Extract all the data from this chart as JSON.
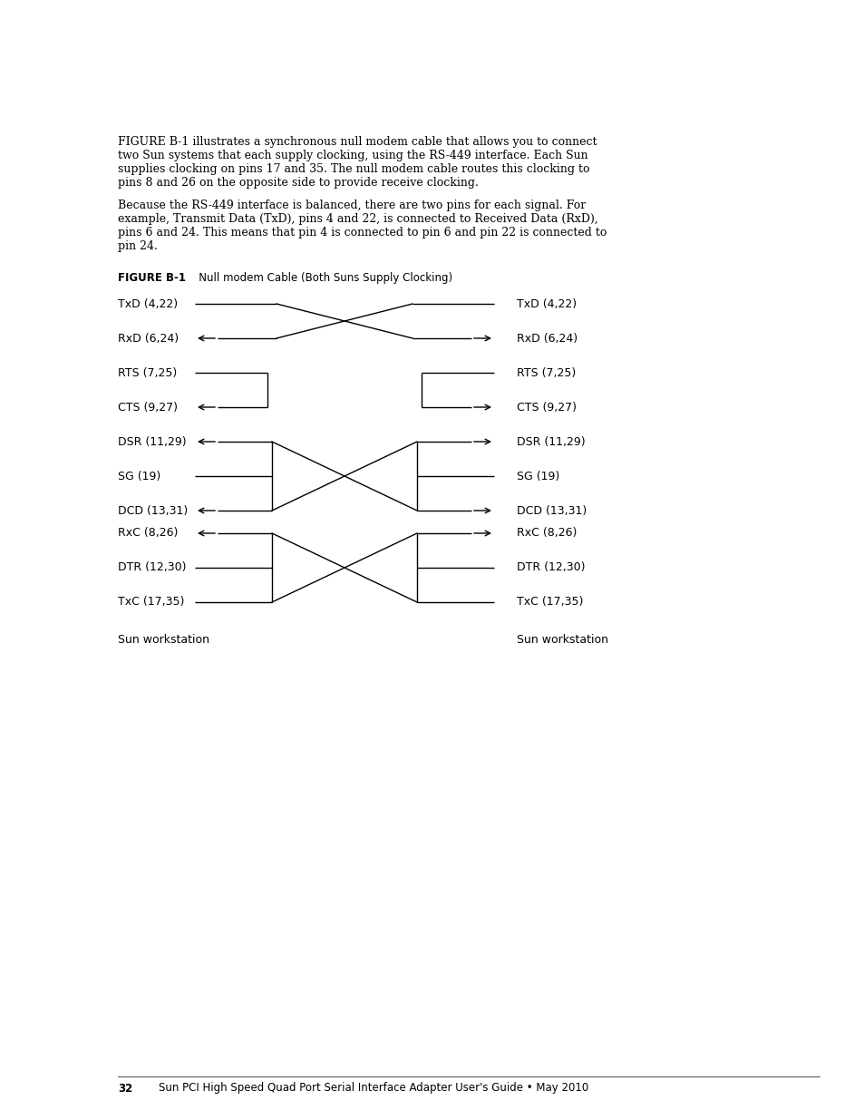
{
  "bg_color": "#ffffff",
  "page_width": 9.54,
  "page_height": 12.35,
  "intro_text": "FIGURE B-1 illustrates a synchronous null modem cable that allows you to connect\ntwo Sun systems that each supply clocking, using the RS-449 interface. Each Sun\nsupplies clocking on pins 17 and 35. The null modem cable routes this clocking to\npins 8 and 26 on the opposite side to provide receive clocking.",
  "para2_text": "Because the RS-449 interface is balanced, there are two pins for each signal. For\nexample, Transmit Data (TxD), pins 4 and 22, is connected to Received Data (RxD),\npins 6 and 24. This means that pin 4 is connected to pin 6 and pin 22 is connected to\npin 24.",
  "figure_label": "FIGURE B-1",
  "figure_title": "   Null modem Cable (Both Suns Supply Clocking)",
  "figure_label_color": "#000000",
  "link_color": "#4169e1",
  "left_labels": [
    "TxD (4,22)",
    "RxD (6,24)",
    "RTS (7,25)",
    "CTS (9,27)",
    "DSR (11,29)",
    "SG (19)",
    "DCD (13,31)",
    "RxC (8,26)",
    "DTR (12,30)",
    "TxC (17,35)"
  ],
  "right_labels": [
    "TxD (4,22)",
    "RxD (6,24)",
    "RTS (7,25)",
    "CTS (9,27)",
    "DSR (11,29)",
    "SG (19)",
    "DCD (13,31)",
    "RxC (8,26)",
    "DTR (12,30)",
    "TxC (17,35)"
  ],
  "footer_page": "32",
  "footer_text": "Sun PCI High Speed Quad Port Serial Interface Adapter User's Guide • May 2010"
}
